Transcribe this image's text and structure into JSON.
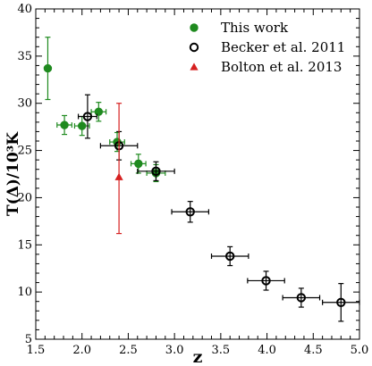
{
  "chart_data": {
    "type": "scatter",
    "xlabel": "z",
    "ylabel": "T(Δ)/10³K",
    "xlim": [
      1.5,
      5.0
    ],
    "ylim": [
      5,
      40
    ],
    "xticks": [
      "1.5",
      "2.0",
      "2.5",
      "3.0",
      "3.5",
      "4.0",
      "4.5",
      "5.0"
    ],
    "yticks": [
      "5",
      "10",
      "15",
      "20",
      "25",
      "30",
      "35",
      "40"
    ],
    "legend_position": "top-right",
    "grid": false,
    "series": [
      {
        "name": "This work",
        "marker": "filled-circle",
        "color": "#1f8a1f",
        "points": [
          {
            "x": 1.63,
            "y": 33.7,
            "xerr": 0.0,
            "yerr": 3.3
          },
          {
            "x": 1.81,
            "y": 27.7,
            "xerr": 0.08,
            "yerr": 1.0
          },
          {
            "x": 2.0,
            "y": 27.6,
            "xerr": 0.08,
            "yerr": 1.0
          },
          {
            "x": 2.18,
            "y": 29.1,
            "xerr": 0.08,
            "yerr": 1.0
          },
          {
            "x": 2.38,
            "y": 25.9,
            "xerr": 0.08,
            "yerr": 1.0
          },
          {
            "x": 2.61,
            "y": 23.6,
            "xerr": 0.08,
            "yerr": 1.0
          },
          {
            "x": 2.8,
            "y": 22.6,
            "xerr": 0.1,
            "yerr": 0.9
          }
        ]
      },
      {
        "name": "Becker et al. 2011",
        "marker": "open-circle",
        "color": "#000000",
        "points": [
          {
            "x": 2.06,
            "y": 28.6,
            "xerr": 0.1,
            "yerr": 2.3
          },
          {
            "x": 2.4,
            "y": 25.5,
            "xerr": 0.2,
            "yerr": 1.5
          },
          {
            "x": 2.8,
            "y": 22.8,
            "xerr": 0.2,
            "yerr": 1.0
          },
          {
            "x": 3.17,
            "y": 18.5,
            "xerr": 0.2,
            "yerr": 1.1
          },
          {
            "x": 3.6,
            "y": 13.8,
            "xerr": 0.2,
            "yerr": 1.0
          },
          {
            "x": 3.99,
            "y": 11.2,
            "xerr": 0.2,
            "yerr": 1.0
          },
          {
            "x": 4.37,
            "y": 9.4,
            "xerr": 0.2,
            "yerr": 1.0
          },
          {
            "x": 4.8,
            "y": 8.9,
            "xerr": 0.2,
            "yerr": 2.0
          }
        ]
      },
      {
        "name": "Bolton et al. 2013",
        "marker": "filled-triangle",
        "color": "#d62020",
        "points": [
          {
            "x": 2.4,
            "y": 22.2,
            "xerr": 0.0,
            "yerr_low": 6.0,
            "yerr_high": 7.8
          }
        ]
      }
    ]
  }
}
